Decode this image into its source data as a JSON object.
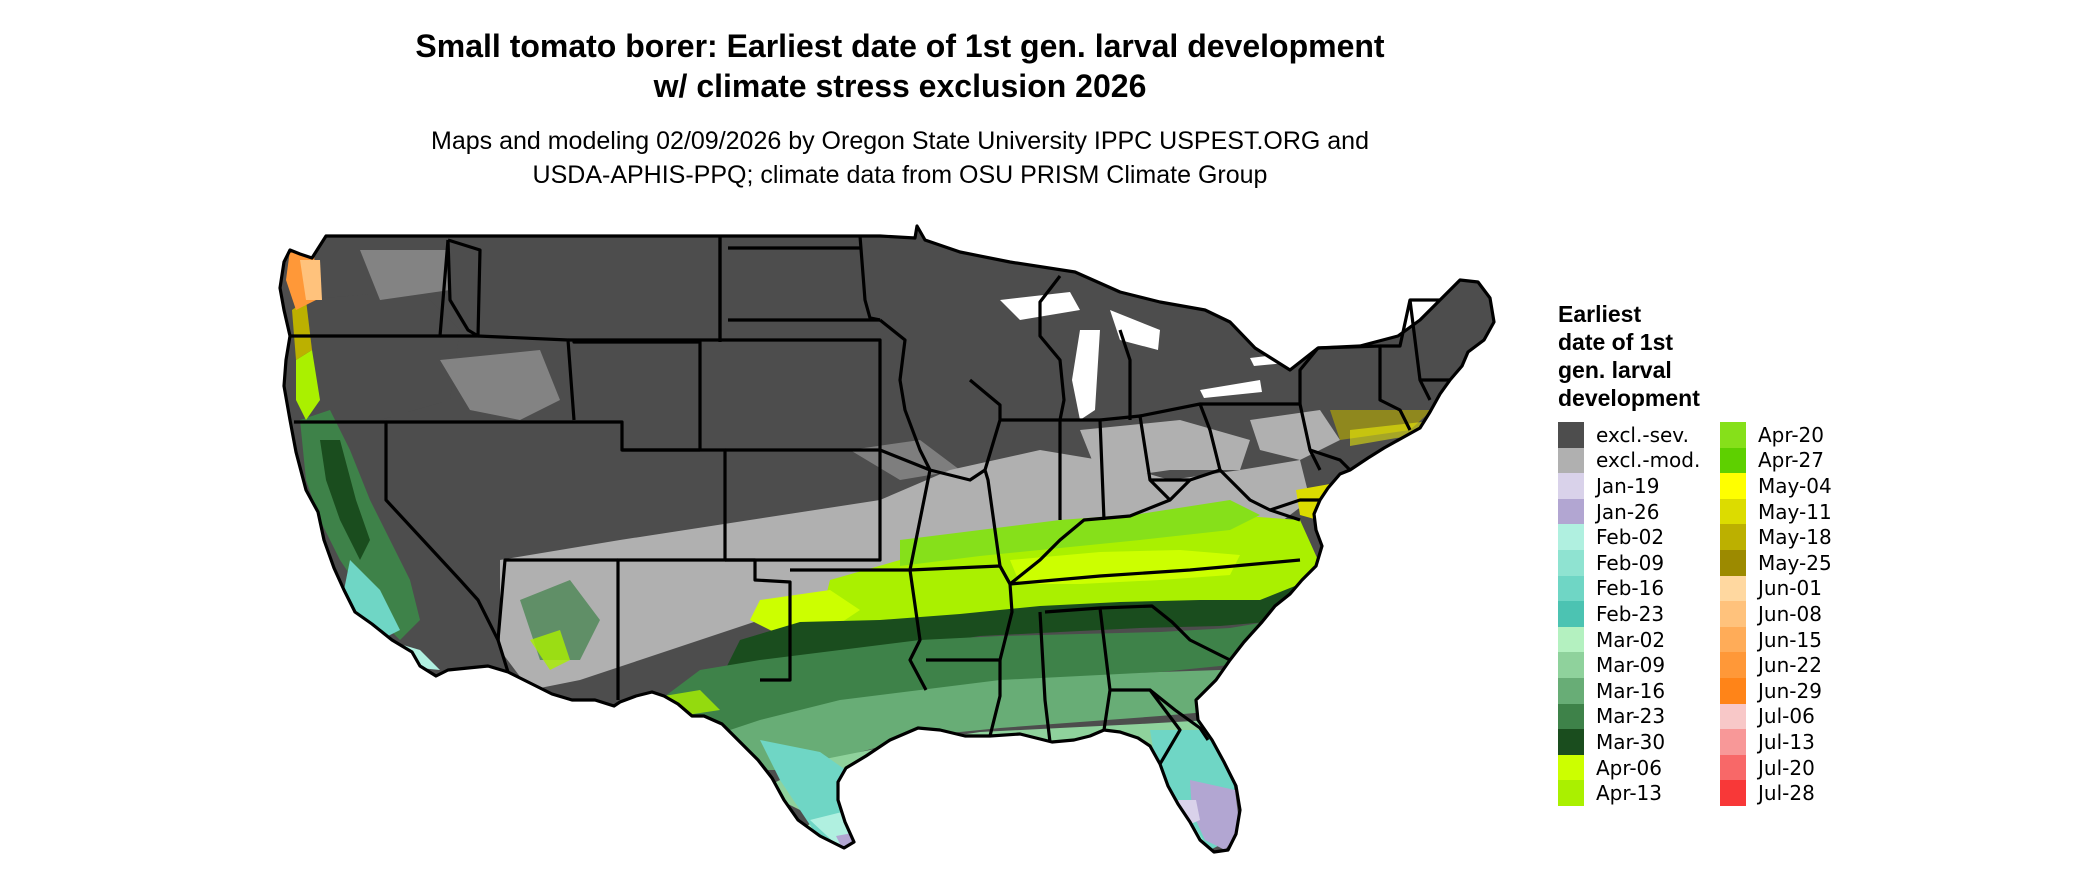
{
  "title": {
    "line1": "Small tomato borer: Earliest date of 1st gen. larval development",
    "line2": "w/ climate stress exclusion 2026"
  },
  "subtitle": {
    "line1": "Maps and modeling 02/09/2026 by Oregon State University IPPC USPEST.ORG and",
    "line2": "USDA-APHIS-PPQ; climate data from OSU PRISM Climate Group"
  },
  "legend": {
    "title_lines": [
      "Earliest",
      "date of 1st",
      "gen. larval",
      "development"
    ],
    "columns": [
      [
        {
          "label": "excl.-sev.",
          "color": "#4d4d4d"
        },
        {
          "label": "excl.-mod.",
          "color": "#b0b0b0"
        },
        {
          "label": "Jan-19",
          "color": "#d9d2ea"
        },
        {
          "label": "Jan-26",
          "color": "#b2a6d2"
        },
        {
          "label": "Feb-02",
          "color": "#b0f0e0"
        },
        {
          "label": "Feb-09",
          "color": "#8fe3d1"
        },
        {
          "label": "Feb-16",
          "color": "#6fd6c5"
        },
        {
          "label": "Feb-23",
          "color": "#4cc3b2"
        },
        {
          "label": "Mar-02",
          "color": "#b4f1c0"
        },
        {
          "label": "Mar-09",
          "color": "#8fd29c"
        },
        {
          "label": "Mar-16",
          "color": "#68ad76"
        },
        {
          "label": "Mar-23",
          "color": "#3e8249"
        },
        {
          "label": "Mar-30",
          "color": "#1a4d1e"
        },
        {
          "label": "Apr-06",
          "color": "#ccff00"
        },
        {
          "label": "Apr-13",
          "color": "#aaf000"
        }
      ],
      [
        {
          "label": "Apr-20",
          "color": "#86e01a"
        },
        {
          "label": "Apr-27",
          "color": "#5ed000"
        },
        {
          "label": "May-04",
          "color": "#ffff00"
        },
        {
          "label": "May-11",
          "color": "#dcdc00"
        },
        {
          "label": "May-18",
          "color": "#bcb000"
        },
        {
          "label": "May-25",
          "color": "#9c8a00"
        },
        {
          "label": "Jun-01",
          "color": "#ffd8a0"
        },
        {
          "label": "Jun-08",
          "color": "#ffc27c"
        },
        {
          "label": "Jun-15",
          "color": "#ffac58"
        },
        {
          "label": "Jun-22",
          "color": "#ff9838"
        },
        {
          "label": "Jun-29",
          "color": "#ff8418"
        },
        {
          "label": "Jul-06",
          "color": "#f8c8c8"
        },
        {
          "label": "Jul-13",
          "color": "#f89898"
        },
        {
          "label": "Jul-20",
          "color": "#f86868"
        },
        {
          "label": "Jul-28",
          "color": "#f83838"
        }
      ]
    ]
  }
}
